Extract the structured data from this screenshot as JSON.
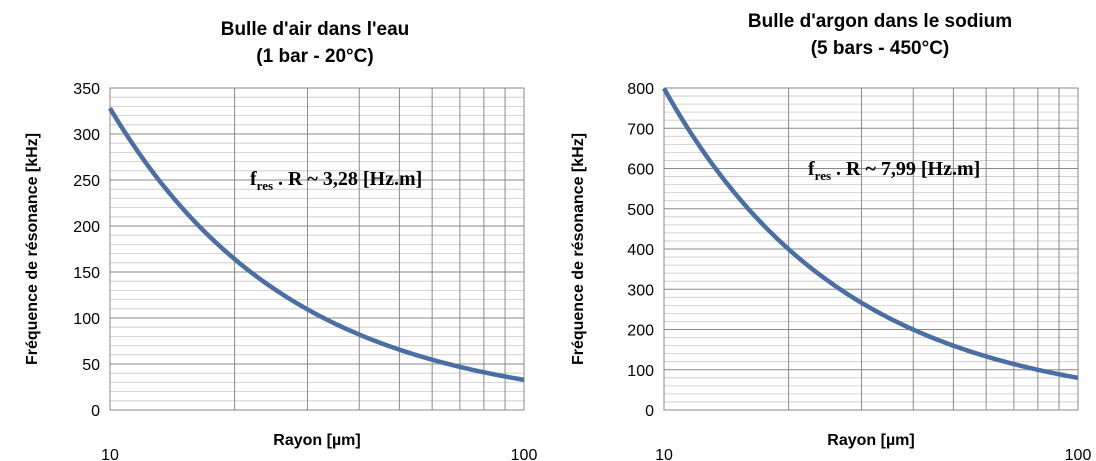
{
  "chart_data": [
    {
      "type": "line",
      "title": "Bulle d'air dans l'eau",
      "subtitle": "(1 bar - 20°C)",
      "xlabel": "Rayon [µm]",
      "ylabel": "Fréquence de résonance [kHz]",
      "x_scale": "log",
      "xlim": [
        10,
        100
      ],
      "ylim": [
        0,
        350
      ],
      "y_ticks": [
        "0",
        "50",
        "100",
        "150",
        "200",
        "250",
        "300",
        "350"
      ],
      "x_ticks": [
        "10",
        "100"
      ],
      "grid": true,
      "annotation": {
        "main": "f",
        "sub": "res",
        "rest": " . R ~ 3,28   [Hz.m]"
      },
      "constant": 3.28,
      "series": [
        {
          "color": "#4a6fa5",
          "x": [
            10,
            12,
            15,
            20,
            25,
            30,
            40,
            50,
            60,
            70,
            80,
            90,
            100
          ],
          "y": [
            328,
            273.3,
            218.7,
            164,
            131.2,
            109.3,
            82,
            65.6,
            54.7,
            46.9,
            41,
            36.4,
            32.8
          ]
        }
      ]
    },
    {
      "type": "line",
      "title": "Bulle d'argon dans le sodium",
      "subtitle": "(5 bars - 450°C)",
      "xlabel": "Rayon [µm]",
      "ylabel": "Fréquence de résonance [kHz]",
      "x_scale": "log",
      "xlim": [
        10,
        100
      ],
      "ylim": [
        0,
        800
      ],
      "y_ticks": [
        "0",
        "100",
        "200",
        "300",
        "400",
        "500",
        "600",
        "700",
        "800"
      ],
      "x_ticks": [
        "10",
        "100"
      ],
      "grid": true,
      "annotation": {
        "main": "f",
        "sub": "res",
        "rest": " . R ~ 7,99   [Hz.m]"
      },
      "constant": 7.99,
      "series": [
        {
          "color": "#4a6fa5",
          "x": [
            10,
            12,
            15,
            20,
            25,
            30,
            40,
            50,
            60,
            70,
            80,
            90,
            100
          ],
          "y": [
            799,
            665.8,
            532.7,
            399.5,
            319.6,
            266.3,
            199.8,
            159.8,
            133.2,
            114.1,
            99.9,
            88.8,
            79.9
          ]
        }
      ]
    }
  ]
}
